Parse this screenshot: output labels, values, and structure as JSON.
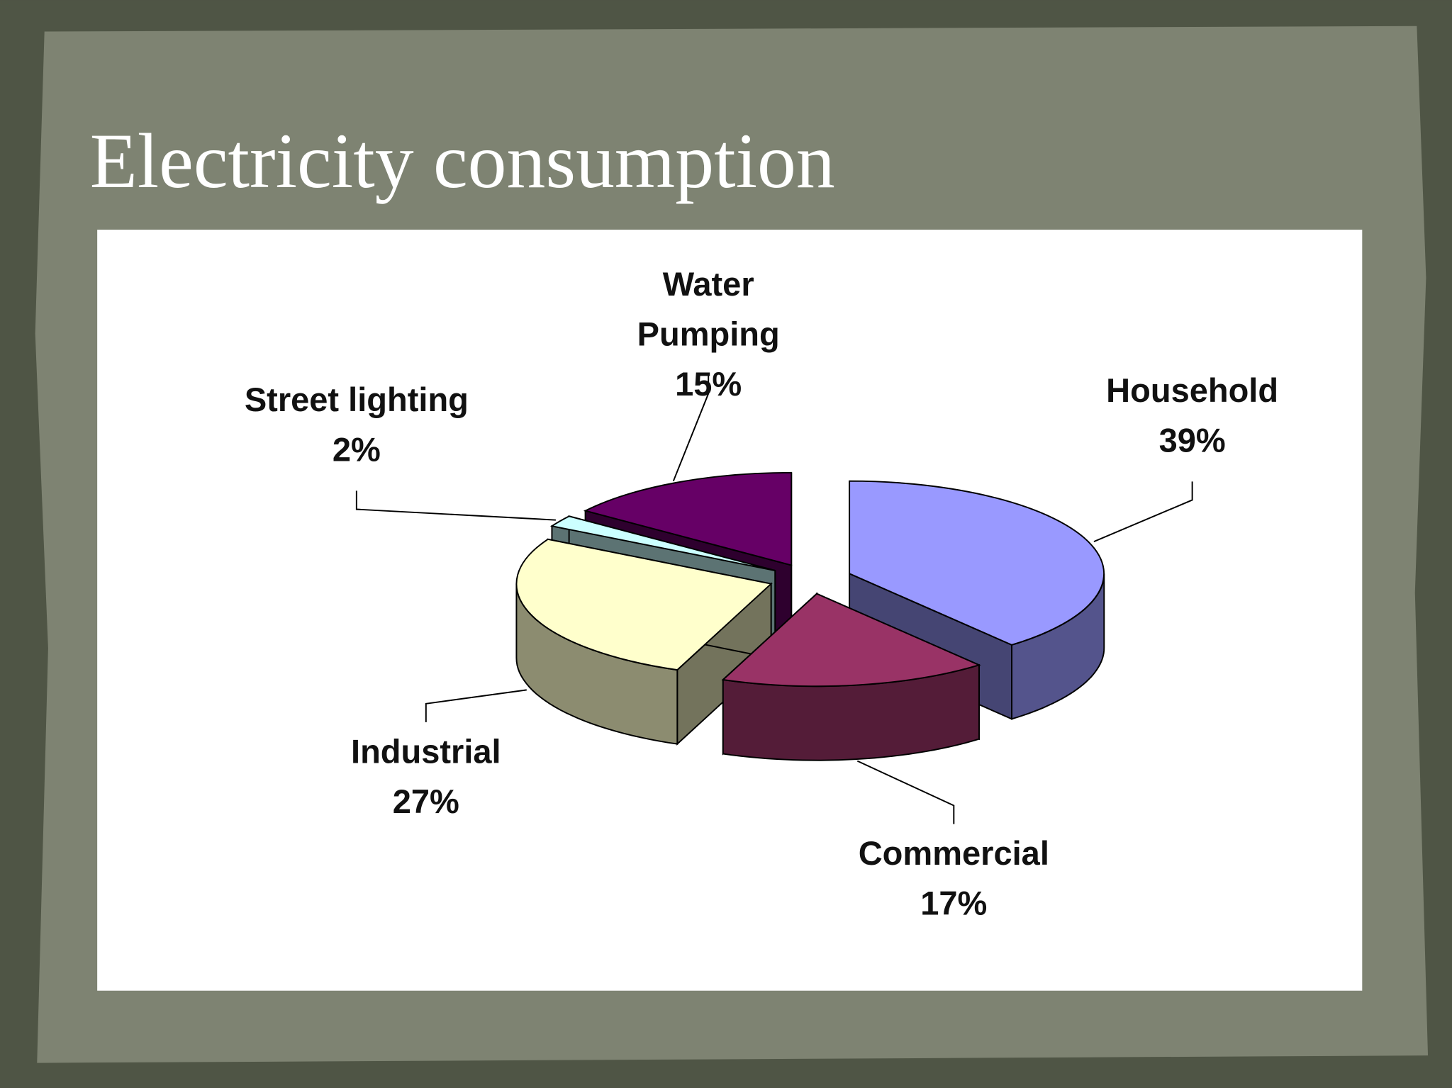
{
  "chart_data": {
    "type": "pie",
    "title": "Electricity consumption",
    "categories": [
      "Household",
      "Commercial",
      "Industrial",
      "Street lighting",
      "Water Pumping"
    ],
    "values": [
      39,
      17,
      27,
      2,
      15
    ],
    "value_labels": [
      "39%",
      "17%",
      "27%",
      "2%",
      "15%"
    ],
    "colors": [
      "#9999ff",
      "#993366",
      "#ffffcc",
      "#ccffff",
      "#660066"
    ],
    "three_d": true,
    "exploded": true
  }
}
